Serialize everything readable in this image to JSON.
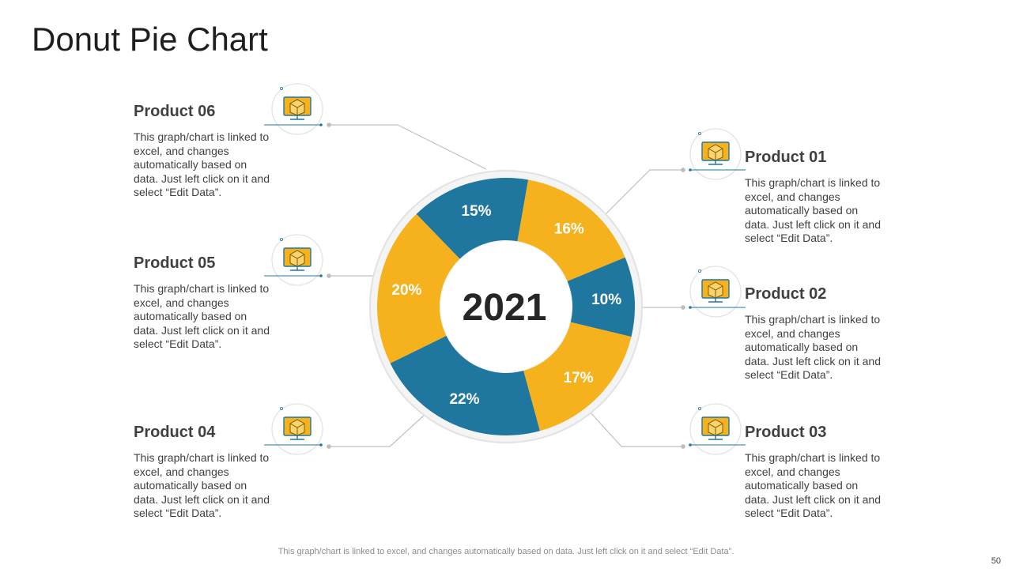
{
  "title": "Donut Pie Chart",
  "chart_data": {
    "type": "pie",
    "center_label": "2021",
    "slices": [
      {
        "label": "15%",
        "value": 15,
        "color": "#1F77A0"
      },
      {
        "label": "16%",
        "value": 16,
        "color": "#F5B21D"
      },
      {
        "label": "10%",
        "value": 10,
        "color": "#1F77A0"
      },
      {
        "label": "17%",
        "value": 17,
        "color": "#F5B21D"
      },
      {
        "label": "22%",
        "value": 22,
        "color": "#1F77A0"
      },
      {
        "label": "20%",
        "value": 20,
        "color": "#F5B21D"
      }
    ]
  },
  "products": [
    {
      "name": "Product 01",
      "desc": "This graph/chart is linked to excel, and changes automatically based on data. Just left click on it and select “Edit Data”.",
      "icon": "box-computer-icon"
    },
    {
      "name": "Product 02",
      "desc": "This graph/chart is linked to excel, and changes automatically based on data. Just left click on it and select “Edit Data”.",
      "icon": "box-computer-icon"
    },
    {
      "name": "Product 03",
      "desc": "This graph/chart is linked to excel, and changes automatically based on data. Just left click on it and select “Edit Data”.",
      "icon": "box-computer-icon"
    },
    {
      "name": "Product 04",
      "desc": "This graph/chart is linked to excel, and changes automatically based on data. Just left click on it and select “Edit Data”.",
      "icon": "box-computer-icon"
    },
    {
      "name": "Product 05",
      "desc": "This graph/chart is linked to excel, and changes automatically based on data. Just left click on it and select “Edit Data”.",
      "icon": "box-computer-icon"
    },
    {
      "name": "Product 06",
      "desc": "This graph/chart is linked to excel, and changes automatically based on data. Just left click on it and select “Edit Data”.",
      "icon": "box-computer-icon"
    }
  ],
  "footer": "This graph/chart is linked to excel,  and changes automatically based on data. Just left click on it and select “Edit Data”.",
  "page_number": "50",
  "colors": {
    "blue": "#1F77A0",
    "gold": "#F5B21D",
    "connector": "#bfbfbf"
  }
}
